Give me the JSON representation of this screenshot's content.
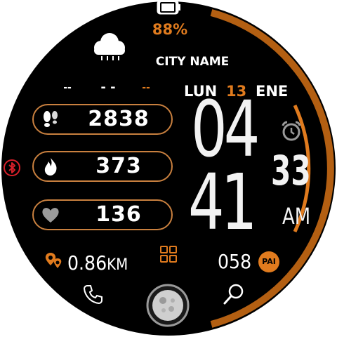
{
  "colors": {
    "accent": "#e07b1e",
    "ring": "#b35f12",
    "pill_border": "#c9803f",
    "bluetooth": "#d8202a",
    "background": "#000000"
  },
  "battery": {
    "percent_label": "88%",
    "level": 0.88
  },
  "weather": {
    "icon": "rain-cloud-icon",
    "city": "CITY NAME",
    "temps": {
      "low": "--",
      "current": "- -",
      "high": "--"
    }
  },
  "date": {
    "weekday": "LUN",
    "day": "13",
    "month": "ENE"
  },
  "time": {
    "hours": "04",
    "minutes": "41",
    "seconds": "33",
    "ampm": "AM"
  },
  "stats": [
    {
      "icon": "footsteps-icon",
      "value": "2838"
    },
    {
      "icon": "flame-icon",
      "value": "373"
    },
    {
      "icon": "heart-icon",
      "value": "136"
    }
  ],
  "distance": {
    "value": "0.86",
    "unit": "KM"
  },
  "pai": {
    "value": "058",
    "label": "PAI"
  },
  "icons": {
    "alarm": "alarm-clock-icon",
    "apps": "apps-grid-icon",
    "phone": "phone-icon",
    "search": "search-icon",
    "moon": "moon-phase-icon",
    "bluetooth": "bluetooth-icon",
    "location": "location-pin-icon"
  }
}
